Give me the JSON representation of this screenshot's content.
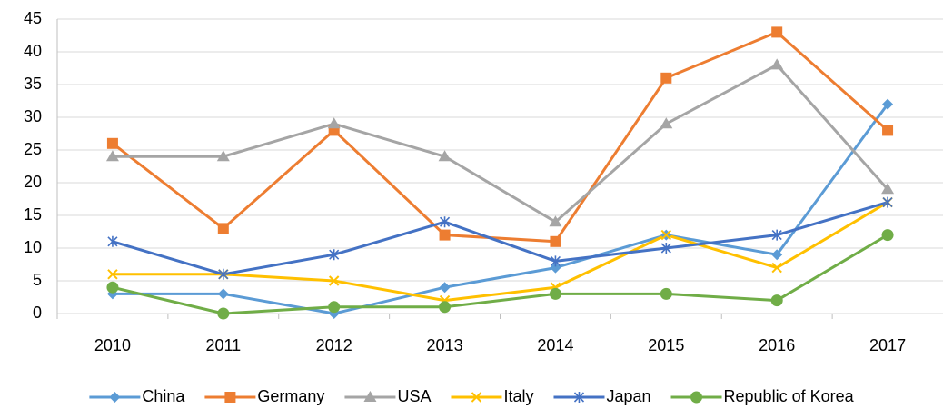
{
  "chart_data": {
    "type": "line",
    "categories": [
      "2010",
      "2011",
      "2012",
      "2013",
      "2014",
      "2015",
      "2016",
      "2017"
    ],
    "series": [
      {
        "name": "China",
        "color": "#5b9bd5",
        "marker": "diamond",
        "values": [
          3,
          3,
          0,
          4,
          7,
          12,
          9,
          32
        ]
      },
      {
        "name": "Germany",
        "color": "#ed7d31",
        "marker": "square",
        "values": [
          26,
          13,
          28,
          12,
          11,
          36,
          43,
          28
        ]
      },
      {
        "name": "USA",
        "color": "#a5a5a5",
        "marker": "triangle",
        "values": [
          24,
          24,
          29,
          24,
          14,
          29,
          38,
          19
        ]
      },
      {
        "name": "Italy",
        "color": "#ffc000",
        "marker": "x",
        "values": [
          6,
          6,
          5,
          2,
          4,
          12,
          7,
          17
        ]
      },
      {
        "name": "Japan",
        "color": "#4472c4",
        "marker": "asterisk",
        "values": [
          11,
          6,
          9,
          14,
          8,
          10,
          12,
          17
        ]
      },
      {
        "name": "Republic of Korea",
        "color": "#70ad47",
        "marker": "circle",
        "values": [
          4,
          0,
          1,
          1,
          3,
          3,
          2,
          12
        ]
      }
    ],
    "ylim": [
      0,
      45
    ],
    "yticks": [
      0,
      5,
      10,
      15,
      20,
      25,
      30,
      35,
      40,
      45
    ],
    "grid": true,
    "legend": "bottom"
  }
}
